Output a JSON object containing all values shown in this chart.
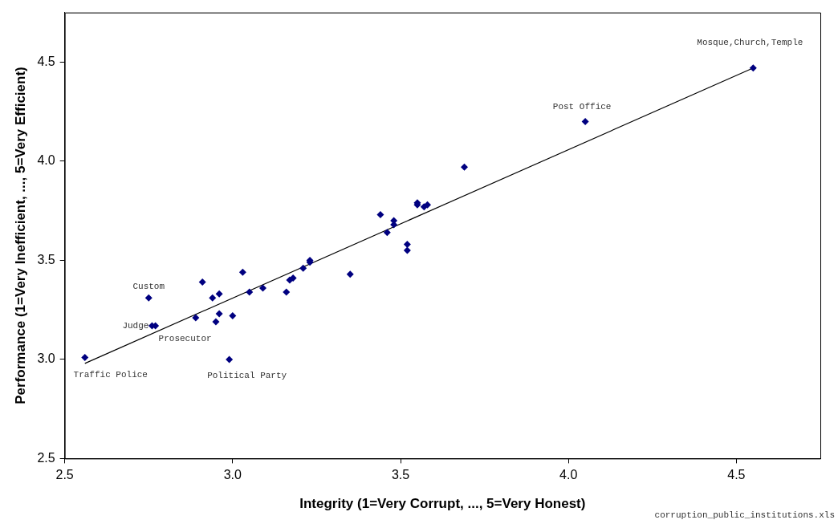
{
  "chart_data": {
    "type": "scatter",
    "xlabel": "Integrity (1=Very Corrupt, ..., 5=Very Honest)",
    "ylabel": "Performance (1=Very Inefficient, ..., 5=Very Efficient)",
    "xlim": [
      2.5,
      4.75
    ],
    "xticks": [
      {
        "value": 2.5,
        "label": "2.5"
      },
      {
        "value": 3,
        "label": "3.0"
      },
      {
        "value": 3.5,
        "label": "3.5"
      },
      {
        "value": 4,
        "label": "4.0"
      },
      {
        "value": 4.5,
        "label": "4.5"
      }
    ],
    "ylim": [
      2.5,
      4.75
    ],
    "yticks": [
      {
        "value": 2.5,
        "label": "2.5"
      },
      {
        "value": 3,
        "label": "3.0"
      },
      {
        "value": 3.5,
        "label": "3.5"
      },
      {
        "value": 4,
        "label": "4.0"
      },
      {
        "value": 4.5,
        "label": "4.5"
      }
    ],
    "grid": false,
    "legend": false,
    "marker": "diamond",
    "series": [
      {
        "color": "#000080",
        "x": [
          2.56,
          2.75,
          2.76,
          2.77,
          2.89,
          2.91,
          2.94,
          2.96,
          2.95,
          2.96,
          3.0,
          2.99,
          3.03,
          3.05,
          3.09,
          3.16,
          3.17,
          3.18,
          3.21,
          3.23,
          3.23,
          3.35,
          3.44,
          3.46,
          3.48,
          3.48,
          3.52,
          3.52,
          3.55,
          3.55,
          3.57,
          3.58,
          3.69,
          4.05,
          4.55
        ],
        "values": [
          3.01,
          3.31,
          3.17,
          3.17,
          3.21,
          3.39,
          3.31,
          3.33,
          3.19,
          3.23,
          3.22,
          3.0,
          3.44,
          3.34,
          3.36,
          3.34,
          3.4,
          3.41,
          3.46,
          3.49,
          3.5,
          3.43,
          3.73,
          3.64,
          3.7,
          3.68,
          3.58,
          3.55,
          3.79,
          3.78,
          3.77,
          3.78,
          3.97,
          4.2,
          4.47
        ]
      },
      {
        "type": "line",
        "color": "#000000",
        "x": [
          2.56,
          4.55
        ],
        "values": [
          2.98,
          4.47
        ],
        "marker": "none",
        "line_style": "solid"
      }
    ],
    "annotations": [
      {
        "text": "Mosque,Church,Temple",
        "x": 4.55,
        "y": 4.47
      },
      {
        "text": "Post Office",
        "x": 4.05,
        "y": 4.2
      },
      {
        "text": "Custom",
        "x": 2.75,
        "y": 3.31
      },
      {
        "text": "Judge",
        "x": 2.76,
        "y": 3.17
      },
      {
        "text": "Prosecutor",
        "x": 2.77,
        "y": 3.17
      },
      {
        "text": "Traffic Police",
        "x": 2.56,
        "y": 3.01
      },
      {
        "text": "Political Party",
        "x": 2.99,
        "y": 3.0
      },
      "corruption_public_institutions.xls"
    ]
  }
}
